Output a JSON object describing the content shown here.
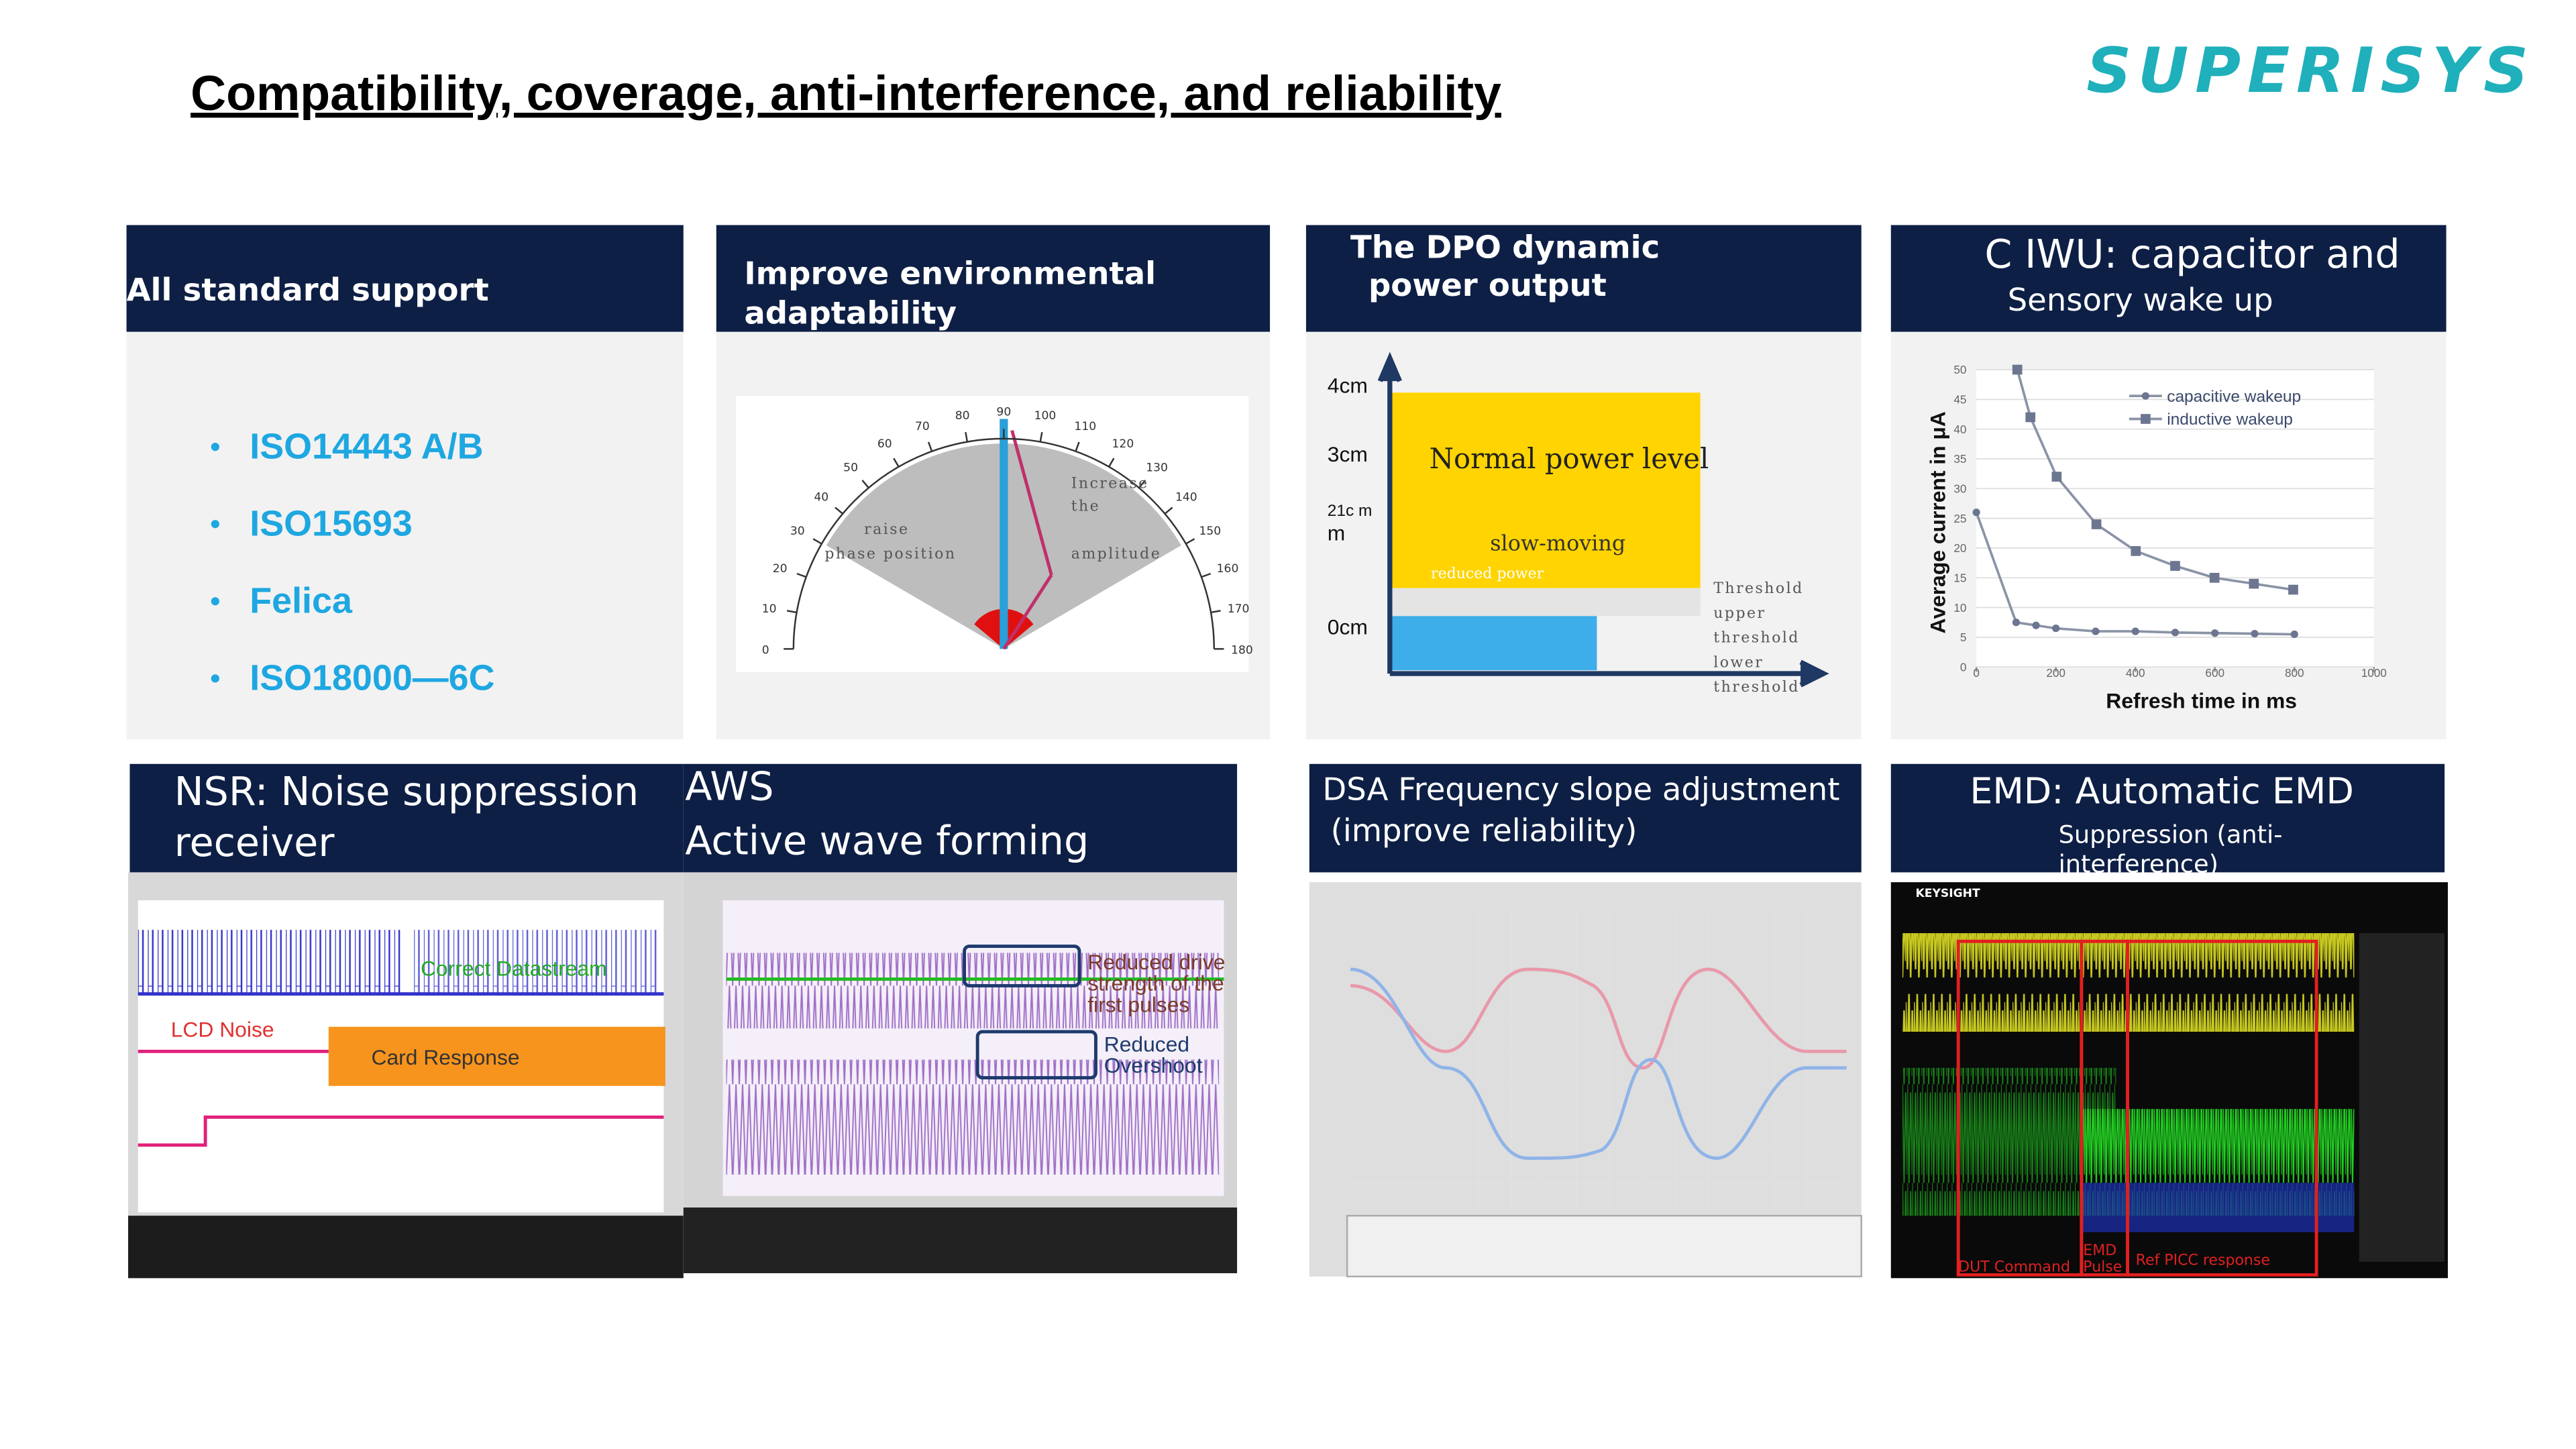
{
  "header": {
    "title": "Compatibility, coverage, anti-interference, and reliability",
    "logo": "SUPERISYS"
  },
  "panels": [
    {
      "heading": [
        "All standard support"
      ],
      "items": [
        "ISO14443 A/B",
        "ISO15693",
        "Felica",
        "ISO18000—6C"
      ]
    },
    {
      "heading": [
        "Improve environmental",
        "adaptability"
      ],
      "gauge": {
        "ticks": [
          0,
          10,
          20,
          30,
          40,
          50,
          60,
          70,
          80,
          90,
          100,
          110,
          120,
          130,
          140,
          150,
          160,
          170,
          180
        ],
        "labels": [
          "Increase",
          "the",
          "amplitude",
          "raise",
          "phase position"
        ]
      }
    },
    {
      "heading": [
        "The DPO dynamic",
        "power output"
      ],
      "levels": [
        "4cm",
        "3cm",
        "21c m",
        "m",
        "0cm"
      ],
      "labels": [
        "Normal power level",
        "slow-moving",
        "reduced power"
      ],
      "thresholds": [
        "Threshold",
        "upper",
        "threshold",
        "lower",
        "threshold"
      ]
    },
    {
      "heading": [
        "C IWU: capacitor and",
        "Sensory wake up"
      ],
      "chart": {
        "y_label": "Average current in μA",
        "x_label": "Refresh time in ms",
        "xlim": [
          0,
          1000
        ],
        "ylim": [
          0,
          50
        ],
        "xticks": [
          0,
          200,
          400,
          600,
          800,
          1000
        ],
        "yticks": [
          0,
          5,
          10,
          15,
          20,
          25,
          30,
          35,
          40,
          45,
          50
        ],
        "series": [
          {
            "name": "capacitive wakeup",
            "x": [
              0,
              100,
              150,
              200,
              300,
              400,
              500,
              600,
              700,
              800
            ],
            "values": [
              26,
              7.5,
              7,
              6.5,
              6,
              6,
              5.8,
              5.7,
              5.6,
              5.5
            ]
          },
          {
            "name": "inductive wakeup",
            "x": [
              103,
              136,
              202,
              302,
              401,
              500,
              599,
              698,
              797
            ],
            "values": [
              50,
              42,
              32,
              24,
              19.5,
              17,
              15,
              14,
              13
            ]
          }
        ]
      }
    },
    {
      "heading": [
        "NSR: Noise suppression",
        "receiver"
      ],
      "labels": [
        "Correct Datastream",
        "LCD Noise",
        "Card Response"
      ]
    },
    {
      "heading": [
        "AWS",
        "Active wave forming"
      ],
      "labels": [
        "Reduced drive",
        "strength of the",
        "first pulses",
        "Reduced",
        "Overshoot"
      ]
    },
    {
      "heading": [
        "DSA Frequency slope adjustment",
        "(improve reliability)"
      ]
    },
    {
      "heading": [
        "EMD: Automatic EMD",
        "Suppression (anti-",
        "interference)"
      ],
      "labels": [
        "KEYSIGHT",
        "DUT Command",
        "EMD",
        "Pulse",
        "Ref PICC response"
      ]
    }
  ]
}
